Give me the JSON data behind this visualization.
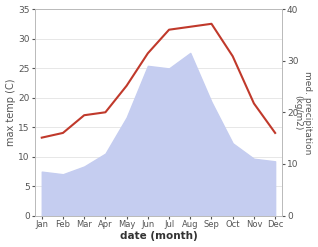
{
  "months": [
    "Jan",
    "Feb",
    "Mar",
    "Apr",
    "May",
    "Jun",
    "Jul",
    "Aug",
    "Sep",
    "Oct",
    "Nov",
    "Dec"
  ],
  "month_indices": [
    0,
    1,
    2,
    3,
    4,
    5,
    6,
    7,
    8,
    9,
    10,
    11
  ],
  "temperature": [
    13.2,
    14.0,
    17.0,
    17.5,
    22.0,
    27.5,
    31.5,
    32.0,
    32.5,
    27.0,
    19.0,
    14.0
  ],
  "precipitation": [
    8.5,
    8.0,
    9.5,
    12.0,
    19.0,
    29.0,
    28.5,
    31.5,
    22.0,
    14.0,
    11.0,
    10.5
  ],
  "temp_color": "#c0392b",
  "precip_fill_color": "#c5cdf0",
  "temp_ylim": [
    0,
    35
  ],
  "precip_ylim": [
    0,
    40
  ],
  "temp_yticks": [
    0,
    5,
    10,
    15,
    20,
    25,
    30,
    35
  ],
  "precip_yticks": [
    0,
    10,
    20,
    30,
    40
  ],
  "xlabel": "date (month)",
  "ylabel_left": "max temp (C)",
  "ylabel_right": "med. precipitation\n(kg/m2)",
  "background_color": "#ffffff",
  "fig_width": 3.18,
  "fig_height": 2.47,
  "dpi": 100,
  "temp_scale": 35,
  "precip_scale": 40
}
